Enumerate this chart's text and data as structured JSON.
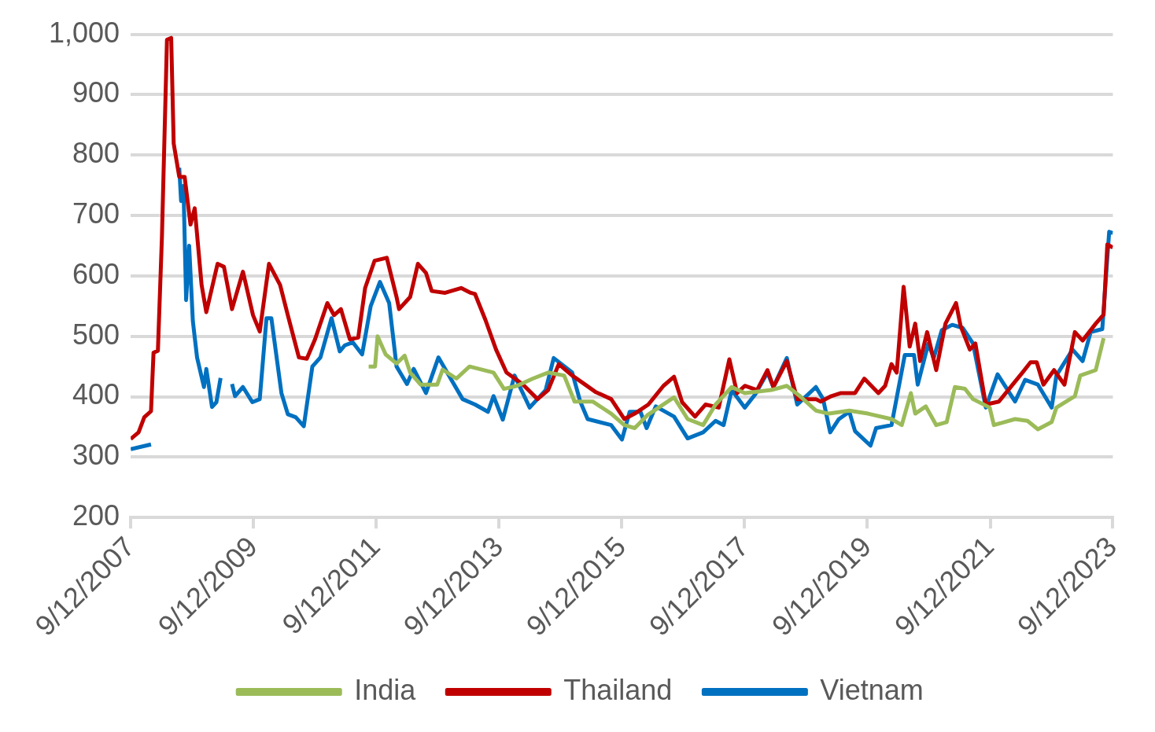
{
  "chart_data": {
    "type": "line",
    "xlim": [
      "2007-09-12",
      "2023-09-12"
    ],
    "xticks": [
      {
        "value": "2007-09-12",
        "label": "9/12/2007"
      },
      {
        "value": "2009-09-12",
        "label": "9/12/2009"
      },
      {
        "value": "2011-09-12",
        "label": "9/12/2011"
      },
      {
        "value": "2013-09-12",
        "label": "9/12/2013"
      },
      {
        "value": "2015-09-12",
        "label": "9/12/2015"
      },
      {
        "value": "2017-09-12",
        "label": "9/12/2017"
      },
      {
        "value": "2019-09-12",
        "label": "9/12/2019"
      },
      {
        "value": "2021-09-12",
        "label": "9/12/2021"
      },
      {
        "value": "2023-09-12",
        "label": "9/12/2023"
      }
    ],
    "ylim": [
      200,
      1000
    ],
    "yticks": [
      200,
      300,
      400,
      500,
      600,
      700,
      800,
      900,
      {
        "value": 1000,
        "label": "1,000"
      }
    ],
    "grid": "y",
    "legend": "bottom",
    "series": [
      {
        "name": "India",
        "color": "#9bbb59",
        "x": [
          "2011-07-29",
          "2011-09-05",
          "2011-09-20",
          "2011-11-07",
          "2012-01-11",
          "2012-02-28",
          "2012-04-01",
          "2012-06-02",
          "2012-09-09",
          "2012-10-11",
          "2013-01-01",
          "2013-03-20",
          "2013-08-10",
          "2013-10-11",
          "2013-12-27",
          "2014-04-01",
          "2014-07-01",
          "2014-10-04",
          "2014-12-05",
          "2015-03-23",
          "2015-07-11",
          "2015-09-27",
          "2015-11-28",
          "2016-02-14",
          "2016-07-19",
          "2016-10-08",
          "2017-01-08",
          "2017-03-23",
          "2017-06-27",
          "2017-09-13",
          "2018-02-17",
          "2018-05-21",
          "2018-08-07",
          "2018-11-10",
          "2019-01-26",
          "2019-05-28",
          "2019-09-16",
          "2020-02-03",
          "2020-04-04",
          "2020-05-28",
          "2020-06-23",
          "2020-08-25",
          "2020-10-26",
          "2020-12-27",
          "2021-02-14",
          "2021-04-15",
          "2021-06-02",
          "2021-09-09",
          "2021-10-04",
          "2022-02-07",
          "2022-04-22",
          "2022-06-23",
          "2022-09-13",
          "2022-10-11",
          "2023-01-29",
          "2023-03-02",
          "2023-06-02",
          "2023-07-19"
        ],
        "values": [
          450,
          450,
          500,
          470,
          455,
          468,
          440,
          420,
          420,
          445,
          430,
          450,
          440,
          413,
          418,
          430,
          440,
          435,
          392,
          392,
          372,
          353,
          348,
          370,
          399,
          363,
          353,
          387,
          416,
          406,
          411,
          418,
          401,
          377,
          372,
          377,
          372,
          363,
          353,
          406,
          372,
          384,
          353,
          358,
          416,
          413,
          396,
          382,
          353,
          363,
          360,
          346,
          358,
          382,
          401,
          435,
          444,
          497
        ]
      },
      {
        "name": "Thailand",
        "color": "#c00000",
        "x": [
          "2007-09-12",
          "2007-10-29",
          "2007-12-02",
          "2008-01-11",
          "2008-01-26",
          "2008-02-21",
          "2008-03-16",
          "2008-04-15",
          "2008-05-10",
          "2008-05-25",
          "2008-06-27",
          "2008-07-29",
          "2008-09-02",
          "2008-09-27",
          "2008-11-07",
          "2008-12-05",
          "2009-02-10",
          "2009-03-20",
          "2009-05-07",
          "2009-07-11",
          "2009-09-09",
          "2009-10-19",
          "2009-12-13",
          "2010-02-17",
          "2010-04-04",
          "2010-06-09",
          "2010-07-26",
          "2010-09-13",
          "2010-11-25",
          "2011-01-04",
          "2011-02-14",
          "2011-04-08",
          "2011-05-28",
          "2011-07-08",
          "2011-09-02",
          "2011-11-14",
          "2012-01-11",
          "2012-01-26",
          "2012-04-01",
          "2012-05-17",
          "2012-07-04",
          "2012-08-07",
          "2012-10-26",
          "2013-01-29",
          "2013-03-27",
          "2013-04-22",
          "2013-06-23",
          "2013-08-25",
          "2013-10-26",
          "2014-01-29",
          "2014-04-29",
          "2014-07-01",
          "2014-09-02",
          "2014-11-21",
          "2015-01-22",
          "2015-04-08",
          "2015-07-11",
          "2015-09-27",
          "2015-11-28",
          "2016-02-17",
          "2016-05-17",
          "2016-07-19",
          "2016-09-05",
          "2016-11-21",
          "2017-01-22",
          "2017-04-11",
          "2017-06-13",
          "2017-07-29",
          "2017-09-13",
          "2017-11-25",
          "2018-01-26",
          "2018-03-02",
          "2018-05-21",
          "2018-07-22",
          "2018-11-10",
          "2018-12-09",
          "2019-02-10",
          "2019-04-08",
          "2019-07-01",
          "2019-08-25",
          "2019-11-17",
          "2019-12-27",
          "2020-02-03",
          "2020-03-05",
          "2020-04-15",
          "2020-05-21",
          "2020-06-23",
          "2020-07-22",
          "2020-09-02",
          "2020-10-26",
          "2020-12-20",
          "2021-02-21",
          "2021-03-20",
          "2021-05-14",
          "2021-06-16",
          "2021-08-17",
          "2021-11-03",
          "2022-02-07",
          "2022-03-23",
          "2022-05-10",
          "2022-06-16",
          "2022-07-26",
          "2022-09-27",
          "2022-11-28",
          "2023-01-29",
          "2023-03-16",
          "2023-06-02",
          "2023-07-19",
          "2023-08-10",
          "2023-09-12"
        ],
        "values": [
          330,
          341,
          366,
          376,
          473,
          476,
          665,
          991,
          994,
          819,
          764,
          764,
          685,
          712,
          585,
          540,
          620,
          615,
          545,
          607,
          535,
          508,
          620,
          585,
          535,
          465,
          463,
          495,
          555,
          535,
          545,
          495,
          498,
          580,
          625,
          630,
          565,
          545,
          565,
          620,
          605,
          575,
          572,
          580,
          572,
          570,
          527,
          478,
          440,
          421,
          396,
          411,
          454,
          435,
          423,
          408,
          396,
          363,
          372,
          387,
          418,
          433,
          391,
          367,
          387,
          382,
          462,
          406,
          418,
          411,
          444,
          416,
          459,
          396,
          396,
          392,
          401,
          406,
          406,
          430,
          406,
          418,
          454,
          440,
          582,
          483,
          521,
          459,
          507,
          444,
          521,
          555,
          517,
          478,
          488,
          387,
          392,
          425,
          440,
          457,
          457,
          420,
          444,
          420,
          507,
          493,
          521,
          536,
          652,
          647
        ]
      },
      {
        "name": "Vietnam",
        "color": "#0070c0",
        "x": [
          "2007-09-12",
          "2008-01-11",
          "2008-04-01",
          "2008-06-27",
          "2008-07-08",
          "2008-07-22",
          "2008-08-07",
          "2008-08-25",
          "2008-09-16",
          "2008-10-11",
          "2008-11-21",
          "2008-12-05",
          "2009-01-08",
          "2009-02-03",
          "2009-02-28",
          "2009-04-01",
          "2009-05-07",
          "2009-05-25",
          "2009-07-11",
          "2009-09-05",
          "2009-10-19",
          "2009-11-28",
          "2009-12-27",
          "2010-02-25",
          "2010-04-04",
          "2010-05-21",
          "2010-07-08",
          "2010-08-28",
          "2010-10-15",
          "2010-12-20",
          "2011-02-07",
          "2011-03-09",
          "2011-04-26",
          "2011-06-20",
          "2011-08-10",
          "2011-10-04",
          "2011-11-28",
          "2012-01-11",
          "2012-03-13",
          "2012-04-22",
          "2012-07-04",
          "2012-09-16",
          "2012-11-28",
          "2013-02-07",
          "2013-04-22",
          "2013-07-08",
          "2013-08-10",
          "2013-10-04",
          "2013-12-13",
          "2014-03-13",
          "2014-06-16",
          "2014-08-03",
          "2014-11-21",
          "2015-01-08",
          "2015-02-21",
          "2015-07-11",
          "2015-09-13",
          "2015-10-29",
          "2016-01-01",
          "2016-02-07",
          "2016-04-01",
          "2016-07-19",
          "2016-10-08",
          "2017-01-08",
          "2017-03-23",
          "2017-05-10",
          "2017-06-27",
          "2017-09-13",
          "2017-11-14",
          "2018-01-26",
          "2018-03-02",
          "2018-05-21",
          "2018-07-22",
          "2018-11-10",
          "2018-12-23",
          "2019-02-03",
          "2019-03-27",
          "2019-05-28",
          "2019-07-01",
          "2019-10-01",
          "2019-11-03",
          "2020-02-03",
          "2020-04-22",
          "2020-06-16",
          "2020-07-08",
          "2020-09-09",
          "2020-10-11",
          "2020-11-28",
          "2021-01-29",
          "2021-04-01",
          "2021-06-02",
          "2021-08-17",
          "2021-10-26",
          "2022-02-07",
          "2022-04-08",
          "2022-06-23",
          "2022-09-13",
          "2022-10-11",
          "2023-01-15",
          "2023-03-16",
          "2023-05-03",
          "2023-07-11",
          "2023-08-21",
          "2023-09-12"
        ],
        "values": [
          313,
          321,
          null,
          779,
          724,
          749,
          560,
          650,
          525,
          465,
          416,
          446,
          383,
          391,
          431,
          null,
          421,
          401,
          416,
          391,
          396,
          530,
          530,
          406,
          371,
          366,
          351,
          450,
          465,
          530,
          475,
          485,
          490,
          470,
          550,
          590,
          555,
          450,
          421,
          446,
          406,
          465,
          430,
          396,
          387,
          375,
          401,
          362,
          435,
          382,
          411,
          464,
          440,
          392,
          363,
          353,
          329,
          375,
          375,
          348,
          384,
          367,
          331,
          341,
          360,
          353,
          411,
          382,
          404,
          440,
          416,
          464,
          387,
          416,
          396,
          341,
          363,
          375,
          343,
          319,
          348,
          353,
          469,
          469,
          420,
          488,
          464,
          510,
          519,
          514,
          488,
          382,
          437,
          392,
          428,
          420,
          382,
          435,
          478,
          459,
          507,
          512,
          673,
          671
        ]
      }
    ]
  }
}
